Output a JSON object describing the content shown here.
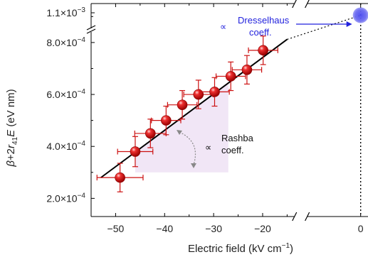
{
  "chart_data": {
    "type": "scatter",
    "xlabel": "Electric field (kV cm",
    "xlabel_sup": "−1",
    "xlabel_close": ")",
    "ylabel_parts": [
      "β",
      "+2",
      "r",
      "41",
      "E",
      " (eV nm)"
    ],
    "x_range": [
      -55,
      1.5
    ],
    "y_range": [
      0.00013,
      0.00095
    ],
    "x_ticks": [
      {
        "value": -50,
        "label": "−50"
      },
      {
        "value": -40,
        "label": "−40"
      },
      {
        "value": -30,
        "label": "−30"
      },
      {
        "value": -20,
        "label": "−20"
      },
      {
        "value": 0,
        "label": "0"
      }
    ],
    "y_ticks": [
      {
        "value": 0.0002,
        "mant": "2.0×10",
        "exp": "−4"
      },
      {
        "value": 0.0004,
        "mant": "4.0×10",
        "exp": "−4"
      },
      {
        "value": 0.0006,
        "mant": "6.0×10",
        "exp": "−4"
      },
      {
        "value": 0.0008,
        "mant": "8.0×10",
        "exp": "−4"
      }
    ],
    "y_break_label": {
      "mant": "1.1×10",
      "exp": "−3"
    },
    "points": [
      {
        "x": -49.1,
        "y": 0.00028,
        "xerr": 4.7,
        "yerr": 5.5e-05
      },
      {
        "x": -46.0,
        "y": 0.00038,
        "xerr": 3.6,
        "yerr": 5.8e-05
      },
      {
        "x": -42.9,
        "y": 0.00045,
        "xerr": 3.2,
        "yerr": 5.5e-05
      },
      {
        "x": -39.7,
        "y": 0.0005,
        "xerr": 3.0,
        "yerr": 5.5e-05
      },
      {
        "x": -36.4,
        "y": 0.00056,
        "xerr": 3.0,
        "yerr": 5.5e-05
      },
      {
        "x": -33.1,
        "y": 0.0006,
        "xerr": 3.0,
        "yerr": 5.5e-05
      },
      {
        "x": -29.8,
        "y": 0.00061,
        "xerr": 3.0,
        "yerr": 5.5e-05
      },
      {
        "x": -26.5,
        "y": 0.00067,
        "xerr": 3.0,
        "yerr": 5.5e-05
      },
      {
        "x": -23.2,
        "y": 0.000695,
        "xerr": 3.0,
        "yerr": 5.5e-05
      },
      {
        "x": -19.9,
        "y": 0.00077,
        "xerr": 3.0,
        "yerr": 5.5e-05
      }
    ],
    "fit_line": {
      "x0": -53,
      "y0": 0.00028,
      "x1": -15,
      "y1": 0.000812
    },
    "dresselhaus_point": {
      "x": 0,
      "y": 0.000905
    },
    "annotations": {
      "dresselhaus_symbol": "∝",
      "dresselhaus_line1": "Dresselhaus",
      "dresselhaus_line2": "coeff.",
      "rashba_symbol": "∝",
      "rashba_line1": "Rashba",
      "rashba_line2": "coeff."
    },
    "colors": {
      "point": "#dd1111",
      "errorbar": "#cc1111",
      "fit": "#000000",
      "rashba_fill": "#f1e6f6",
      "dresselhaus": "#2222dd",
      "dresselhaus_fill": "#6b6bf0"
    }
  }
}
